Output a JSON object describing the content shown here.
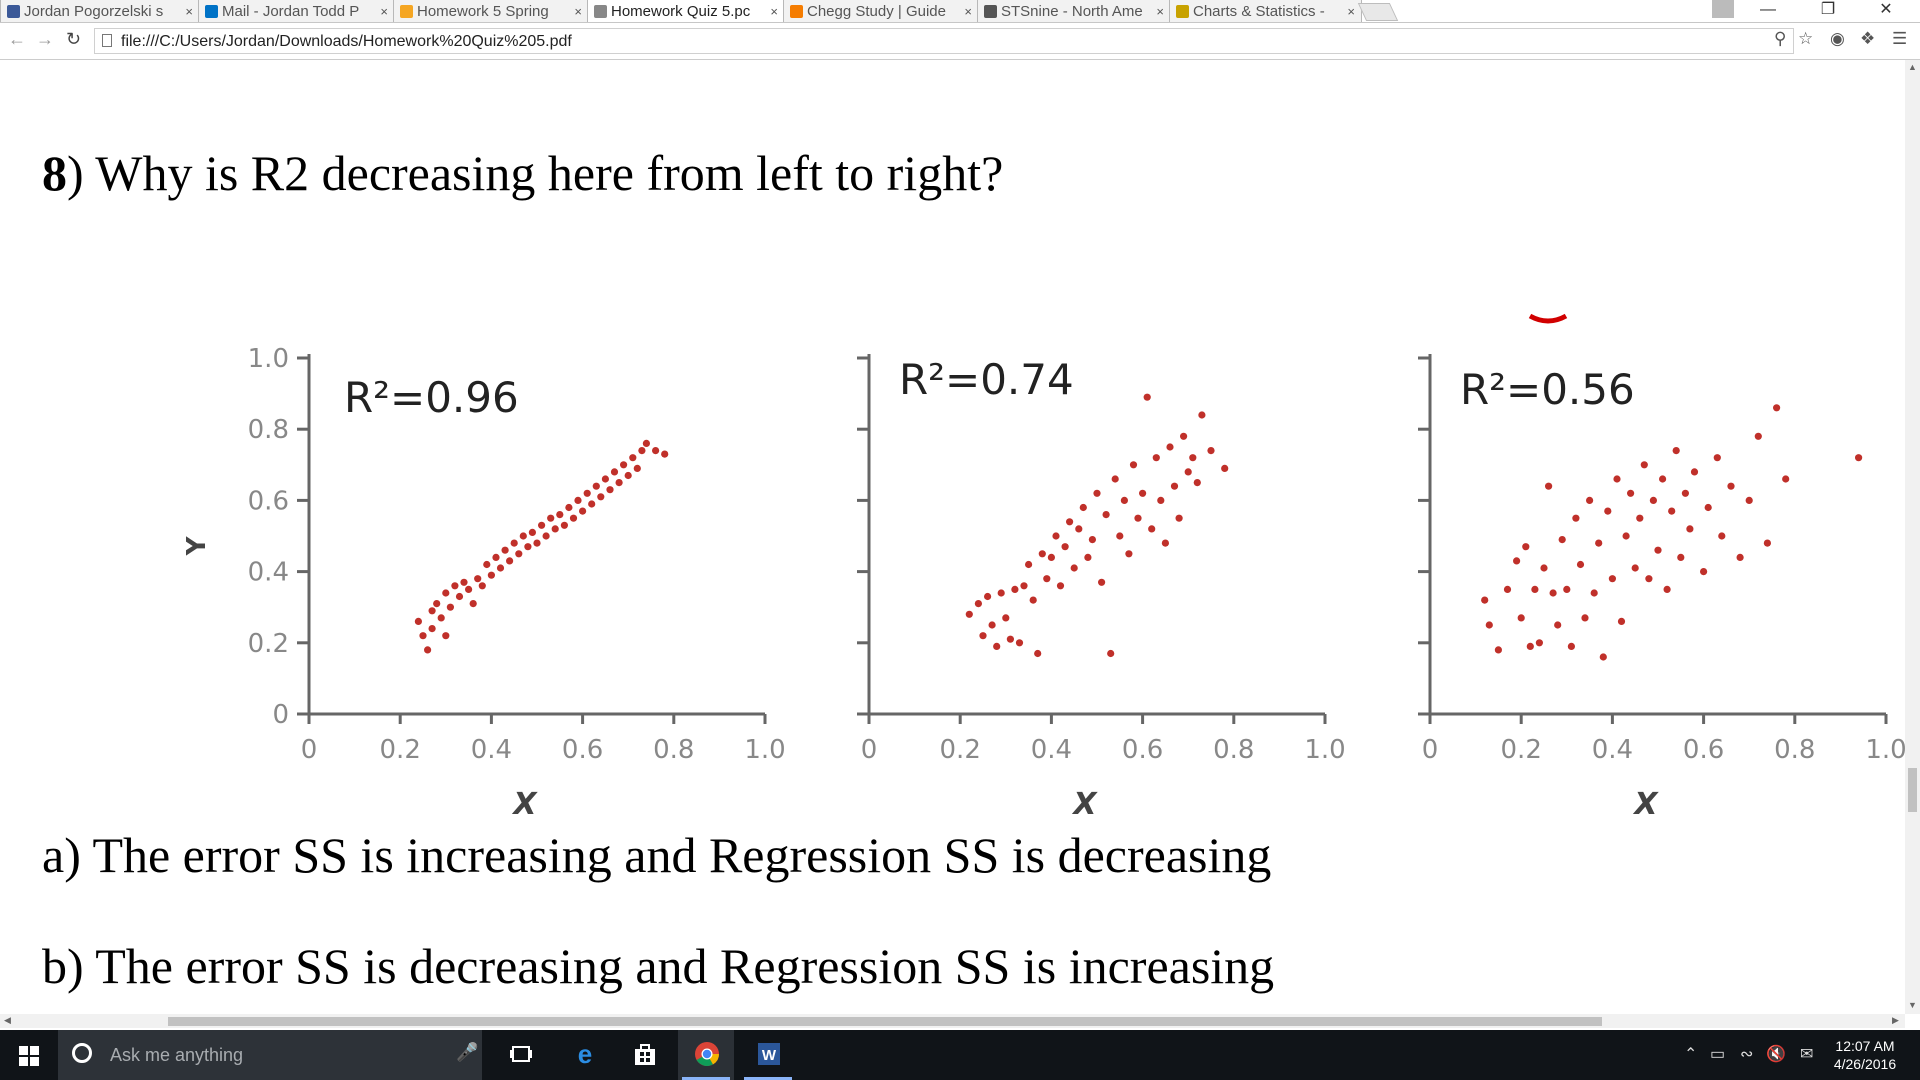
{
  "browser": {
    "tabs": [
      {
        "title": "Jordan Pogorzelski s",
        "icon": "facebook-icon",
        "color": "#3b5998",
        "active": false
      },
      {
        "title": "Mail - Jordan Todd P",
        "icon": "mail-icon",
        "color": "#0072c6",
        "active": false
      },
      {
        "title": "Homework 5 Spring",
        "icon": "asterisk-icon",
        "color": "#f5a623",
        "active": false
      },
      {
        "title": "Homework Quiz 5.pc",
        "icon": "document-icon",
        "color": "#888888",
        "active": true
      },
      {
        "title": "Chegg Study | Guide",
        "icon": "chegg-icon",
        "color": "#f57c00",
        "active": false
      },
      {
        "title": "STSnine - North Ame",
        "icon": "ls-icon",
        "color": "#555555",
        "active": false
      },
      {
        "title": "Charts & Statistics -",
        "icon": "crown-icon",
        "color": "#c8a200",
        "active": false
      }
    ],
    "url": "file:///C:/Users/Jordan/Downloads/Homework%20Quiz%205.pdf"
  },
  "document": {
    "question_number": "8",
    "question_text": ") Why is R2 decreasing here from left to right?",
    "option_a": "a) The error SS is increasing and Regression SS is decreasing",
    "option_b": "b) The error SS is decreasing and Regression SS is increasing"
  },
  "chart_data": [
    {
      "type": "scatter",
      "annotation": "R²=0.96",
      "xlabel": "X",
      "ylabel": "Y",
      "xlim": [
        0,
        1.0
      ],
      "ylim": [
        0,
        1.0
      ],
      "xticks": [
        "0",
        "0.2",
        "0.4",
        "0.6",
        "0.8",
        "1.0"
      ],
      "yticks": [
        "0",
        "0.2",
        "0.4",
        "0.6",
        "0.8",
        "1.0"
      ],
      "color": "#c0302a",
      "points": [
        [
          0.24,
          0.26
        ],
        [
          0.25,
          0.22
        ],
        [
          0.26,
          0.18
        ],
        [
          0.27,
          0.29
        ],
        [
          0.27,
          0.24
        ],
        [
          0.28,
          0.31
        ],
        [
          0.29,
          0.27
        ],
        [
          0.3,
          0.22
        ],
        [
          0.3,
          0.34
        ],
        [
          0.31,
          0.3
        ],
        [
          0.32,
          0.36
        ],
        [
          0.33,
          0.33
        ],
        [
          0.34,
          0.37
        ],
        [
          0.35,
          0.35
        ],
        [
          0.36,
          0.31
        ],
        [
          0.37,
          0.38
        ],
        [
          0.38,
          0.36
        ],
        [
          0.39,
          0.42
        ],
        [
          0.4,
          0.39
        ],
        [
          0.41,
          0.44
        ],
        [
          0.42,
          0.41
        ],
        [
          0.43,
          0.46
        ],
        [
          0.44,
          0.43
        ],
        [
          0.45,
          0.48
        ],
        [
          0.46,
          0.45
        ],
        [
          0.47,
          0.5
        ],
        [
          0.48,
          0.47
        ],
        [
          0.49,
          0.51
        ],
        [
          0.5,
          0.48
        ],
        [
          0.51,
          0.53
        ],
        [
          0.52,
          0.5
        ],
        [
          0.53,
          0.55
        ],
        [
          0.54,
          0.52
        ],
        [
          0.55,
          0.56
        ],
        [
          0.56,
          0.53
        ],
        [
          0.57,
          0.58
        ],
        [
          0.58,
          0.55
        ],
        [
          0.59,
          0.6
        ],
        [
          0.6,
          0.57
        ],
        [
          0.61,
          0.62
        ],
        [
          0.62,
          0.59
        ],
        [
          0.63,
          0.64
        ],
        [
          0.64,
          0.61
        ],
        [
          0.65,
          0.66
        ],
        [
          0.66,
          0.63
        ],
        [
          0.67,
          0.68
        ],
        [
          0.68,
          0.65
        ],
        [
          0.69,
          0.7
        ],
        [
          0.7,
          0.67
        ],
        [
          0.71,
          0.72
        ],
        [
          0.72,
          0.69
        ],
        [
          0.73,
          0.74
        ],
        [
          0.74,
          0.76
        ],
        [
          0.76,
          0.74
        ],
        [
          0.78,
          0.73
        ]
      ]
    },
    {
      "type": "scatter",
      "annotation": "R²=0.74",
      "xlabel": "X",
      "ylabel": "",
      "xlim": [
        0,
        1.0
      ],
      "ylim": [
        0,
        1.0
      ],
      "xticks": [
        "0",
        "0.2",
        "0.4",
        "0.6",
        "0.8",
        "1.0"
      ],
      "color": "#c0302a",
      "points": [
        [
          0.22,
          0.28
        ],
        [
          0.24,
          0.31
        ],
        [
          0.25,
          0.22
        ],
        [
          0.26,
          0.33
        ],
        [
          0.27,
          0.25
        ],
        [
          0.28,
          0.19
        ],
        [
          0.29,
          0.34
        ],
        [
          0.3,
          0.27
        ],
        [
          0.31,
          0.21
        ],
        [
          0.32,
          0.35
        ],
        [
          0.33,
          0.2
        ],
        [
          0.34,
          0.36
        ],
        [
          0.35,
          0.42
        ],
        [
          0.36,
          0.32
        ],
        [
          0.37,
          0.17
        ],
        [
          0.38,
          0.45
        ],
        [
          0.39,
          0.38
        ],
        [
          0.4,
          0.44
        ],
        [
          0.41,
          0.5
        ],
        [
          0.42,
          0.36
        ],
        [
          0.43,
          0.47
        ],
        [
          0.44,
          0.54
        ],
        [
          0.45,
          0.41
        ],
        [
          0.46,
          0.52
        ],
        [
          0.47,
          0.58
        ],
        [
          0.48,
          0.44
        ],
        [
          0.49,
          0.49
        ],
        [
          0.5,
          0.62
        ],
        [
          0.51,
          0.37
        ],
        [
          0.52,
          0.56
        ],
        [
          0.53,
          0.17
        ],
        [
          0.54,
          0.66
        ],
        [
          0.55,
          0.5
        ],
        [
          0.56,
          0.6
        ],
        [
          0.57,
          0.45
        ],
        [
          0.58,
          0.7
        ],
        [
          0.59,
          0.55
        ],
        [
          0.6,
          0.62
        ],
        [
          0.61,
          0.89
        ],
        [
          0.62,
          0.52
        ],
        [
          0.63,
          0.72
        ],
        [
          0.64,
          0.6
        ],
        [
          0.65,
          0.48
        ],
        [
          0.66,
          0.75
        ],
        [
          0.67,
          0.64
        ],
        [
          0.68,
          0.55
        ],
        [
          0.69,
          0.78
        ],
        [
          0.7,
          0.68
        ],
        [
          0.71,
          0.72
        ],
        [
          0.72,
          0.65
        ],
        [
          0.73,
          0.84
        ],
        [
          0.75,
          0.74
        ],
        [
          0.78,
          0.69
        ]
      ]
    },
    {
      "type": "scatter",
      "annotation": "R²=0.56",
      "xlabel": "X",
      "ylabel": "",
      "xlim": [
        0,
        1.0
      ],
      "ylim": [
        0,
        1.0
      ],
      "xticks": [
        "0",
        "0.2",
        "0.4",
        "0.6",
        "0.8",
        "1.0"
      ],
      "color": "#c0302a",
      "points": [
        [
          0.12,
          0.32
        ],
        [
          0.13,
          0.25
        ],
        [
          0.15,
          0.18
        ],
        [
          0.17,
          0.35
        ],
        [
          0.19,
          0.43
        ],
        [
          0.2,
          0.27
        ],
        [
          0.21,
          0.47
        ],
        [
          0.22,
          0.19
        ],
        [
          0.23,
          0.35
        ],
        [
          0.24,
          0.2
        ],
        [
          0.25,
          0.41
        ],
        [
          0.26,
          0.64
        ],
        [
          0.27,
          0.34
        ],
        [
          0.28,
          0.25
        ],
        [
          0.29,
          0.49
        ],
        [
          0.3,
          0.35
        ],
        [
          0.31,
          0.19
        ],
        [
          0.32,
          0.55
        ],
        [
          0.33,
          0.42
        ],
        [
          0.34,
          0.27
        ],
        [
          0.35,
          0.6
        ],
        [
          0.36,
          0.34
        ],
        [
          0.37,
          0.48
        ],
        [
          0.38,
          0.16
        ],
        [
          0.39,
          0.57
        ],
        [
          0.4,
          0.38
        ],
        [
          0.41,
          0.66
        ],
        [
          0.42,
          0.26
        ],
        [
          0.43,
          0.5
        ],
        [
          0.44,
          0.62
        ],
        [
          0.45,
          0.41
        ],
        [
          0.46,
          0.55
        ],
        [
          0.47,
          0.7
        ],
        [
          0.48,
          0.38
        ],
        [
          0.49,
          0.6
        ],
        [
          0.5,
          0.46
        ],
        [
          0.51,
          0.66
        ],
        [
          0.52,
          0.35
        ],
        [
          0.53,
          0.57
        ],
        [
          0.54,
          0.74
        ],
        [
          0.55,
          0.44
        ],
        [
          0.56,
          0.62
        ],
        [
          0.57,
          0.52
        ],
        [
          0.58,
          0.68
        ],
        [
          0.6,
          0.4
        ],
        [
          0.61,
          0.58
        ],
        [
          0.63,
          0.72
        ],
        [
          0.64,
          0.5
        ],
        [
          0.66,
          0.64
        ],
        [
          0.68,
          0.44
        ],
        [
          0.7,
          0.6
        ],
        [
          0.72,
          0.78
        ],
        [
          0.74,
          0.48
        ],
        [
          0.76,
          0.86
        ],
        [
          0.78,
          0.66
        ],
        [
          0.94,
          0.72
        ]
      ]
    }
  ],
  "taskbar": {
    "search_placeholder": "Ask me anything",
    "time": "12:07 AM",
    "date": "4/26/2016"
  }
}
